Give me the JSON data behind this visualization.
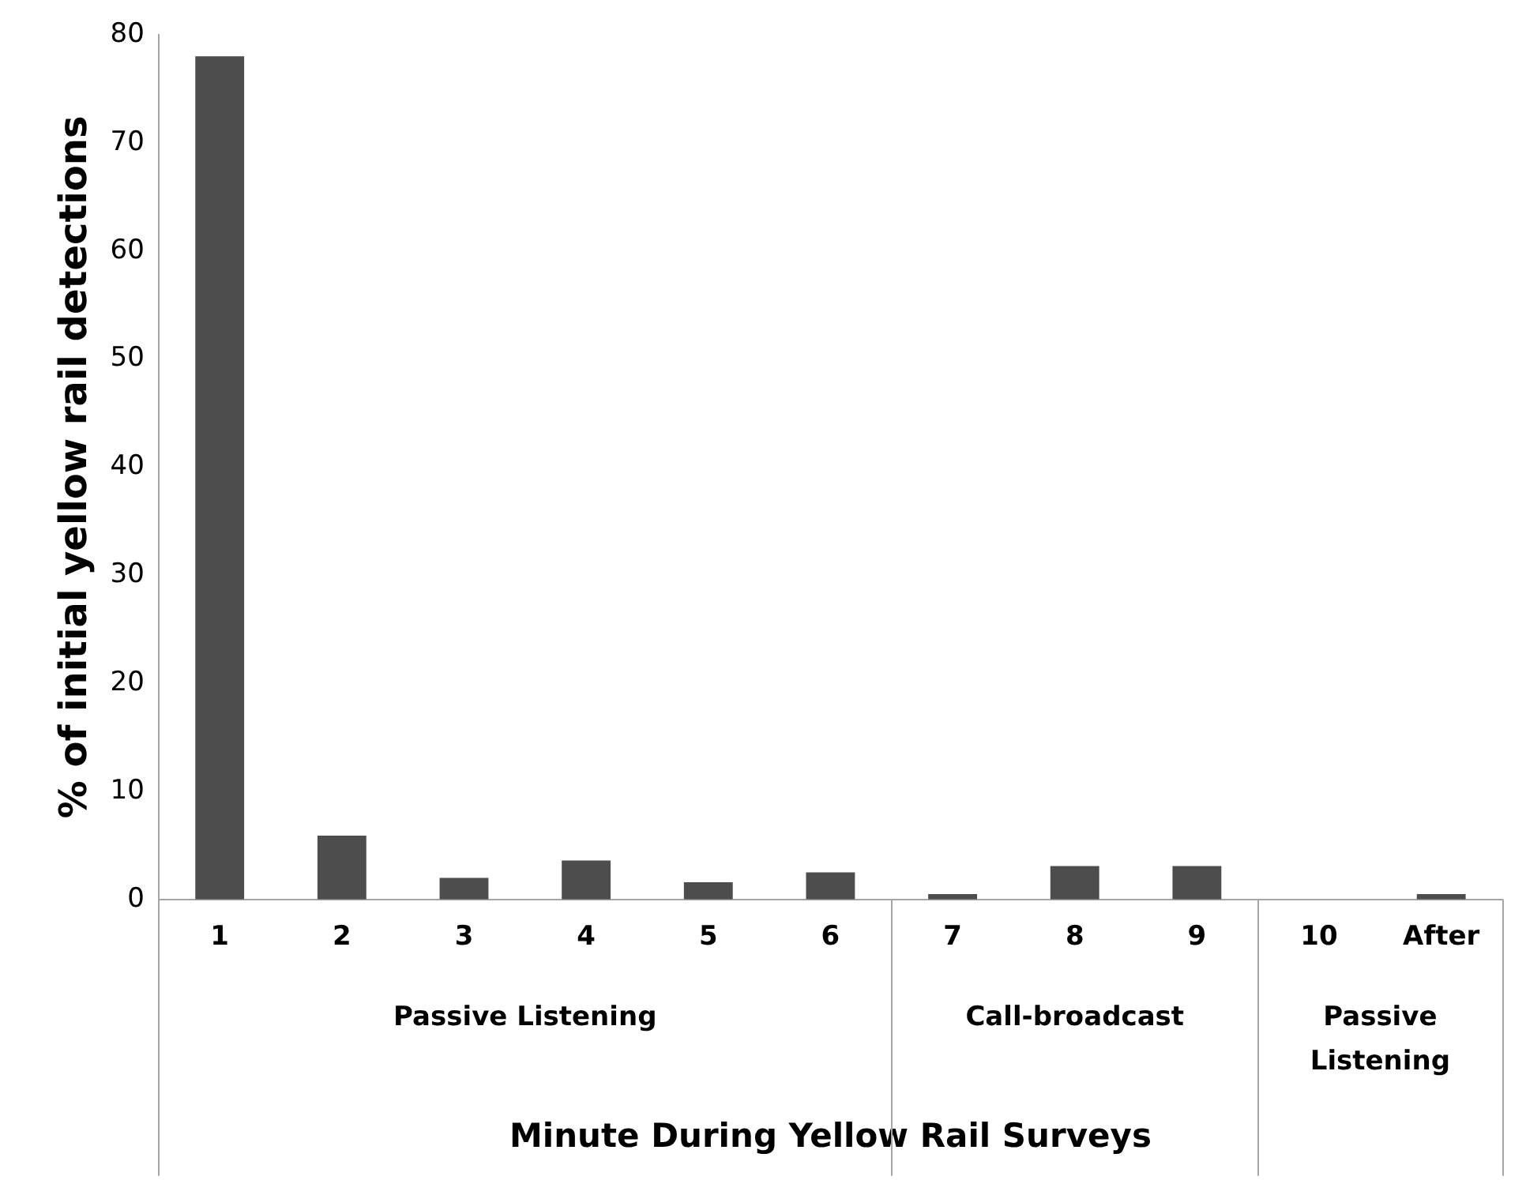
{
  "chart_data": {
    "type": "bar",
    "ylabel": "% of initial yellow rail detections",
    "xlabel": "Minute During Yellow Rail Surveys",
    "categories": [
      "1",
      "2",
      "3",
      "4",
      "5",
      "6",
      "7",
      "8",
      "9",
      "10",
      "After"
    ],
    "values": [
      78,
      5.9,
      2.0,
      3.6,
      1.6,
      2.5,
      0.5,
      3.1,
      3.1,
      0,
      0.5
    ],
    "color": "#4d4d4d",
    "ylim": [
      0,
      80
    ],
    "yticks": [
      0,
      10,
      20,
      30,
      40,
      50,
      60,
      70,
      80
    ],
    "grid": false,
    "legend": false,
    "annotations": [
      "Passive Listening",
      "Call-broadcast",
      "Passive\nListening"
    ]
  }
}
